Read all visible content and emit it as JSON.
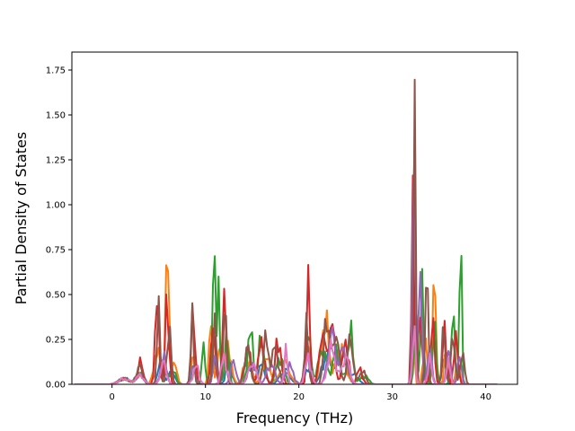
{
  "chart_data": {
    "type": "line",
    "title": "",
    "xlabel": "Frequency (THz)",
    "ylabel": "Partial Density of States",
    "xlim": [
      -4.3,
      43.4
    ],
    "ylim": [
      0.0,
      1.85
    ],
    "xticks": [
      0,
      10,
      20,
      30,
      40
    ],
    "xtick_labels": [
      "0",
      "10",
      "20",
      "30",
      "40"
    ],
    "yticks": [
      0.0,
      0.25,
      0.5,
      0.75,
      1.0,
      1.25,
      1.5,
      1.75
    ],
    "ytick_labels": [
      "0.00",
      "0.25",
      "0.50",
      "0.75",
      "1.00",
      "1.25",
      "1.50",
      "1.75"
    ],
    "grid": false,
    "legend": "none",
    "x_range": [
      -4.0,
      41.3
    ],
    "x_step": 0.2,
    "series": [
      {
        "color": "#1f77b4",
        "peaks": [
          [
            1.3,
            0.03,
            0.6
          ],
          [
            3,
            0.07,
            0.4
          ],
          [
            5.2,
            0.12,
            0.3
          ],
          [
            6.4,
            0.08,
            0.3
          ],
          [
            8.7,
            0.1,
            0.2
          ],
          [
            11,
            0.14,
            0.2
          ],
          [
            12.5,
            0.12,
            0.3
          ],
          [
            14.5,
            0.12,
            0.4
          ],
          [
            16,
            0.1,
            0.4
          ],
          [
            18.5,
            0.08,
            0.5
          ],
          [
            21,
            0.1,
            0.3
          ],
          [
            23,
            0.16,
            0.5
          ],
          [
            24.5,
            0.18,
            0.5
          ],
          [
            26,
            0.05,
            0.4
          ],
          [
            32.3,
            0.28,
            0.15
          ],
          [
            33.5,
            0.12,
            0.2
          ],
          [
            35.5,
            0.15,
            0.2
          ],
          [
            37,
            0.1,
            0.2
          ]
        ]
      },
      {
        "color": "#ff7f0e",
        "peaks": [
          [
            1.3,
            0.03,
            0.6
          ],
          [
            3,
            0.06,
            0.4
          ],
          [
            4.8,
            0.2,
            0.3
          ],
          [
            5.9,
            0.65,
            0.2
          ],
          [
            6.6,
            0.12,
            0.3
          ],
          [
            8.7,
            0.15,
            0.2
          ],
          [
            10.6,
            0.32,
            0.2
          ],
          [
            11.5,
            0.2,
            0.2
          ],
          [
            12.5,
            0.2,
            0.3
          ],
          [
            14.5,
            0.15,
            0.4
          ],
          [
            16.5,
            0.15,
            0.4
          ],
          [
            18.5,
            0.12,
            0.5
          ],
          [
            21,
            0.2,
            0.3
          ],
          [
            22.8,
            0.35,
            0.4
          ],
          [
            24.5,
            0.2,
            0.5
          ],
          [
            32.2,
            0.35,
            0.15
          ],
          [
            33.5,
            0.25,
            0.2
          ],
          [
            34.5,
            0.65,
            0.15
          ],
          [
            35.8,
            0.2,
            0.2
          ],
          [
            37,
            0.12,
            0.2
          ]
        ]
      },
      {
        "color": "#2ca02c",
        "peaks": [
          [
            1.3,
            0.03,
            0.6
          ],
          [
            3,
            0.06,
            0.4
          ],
          [
            5.5,
            0.1,
            0.3
          ],
          [
            6.5,
            0.08,
            0.3
          ],
          [
            8.7,
            0.1,
            0.2
          ],
          [
            9.8,
            0.26,
            0.15
          ],
          [
            10.9,
            1.0,
            0.12
          ],
          [
            11.4,
            0.5,
            0.15
          ],
          [
            12.3,
            0.25,
            0.2
          ],
          [
            14.8,
            0.28,
            0.3
          ],
          [
            16,
            0.25,
            0.3
          ],
          [
            18,
            0.15,
            0.4
          ],
          [
            21,
            0.25,
            0.3
          ],
          [
            22.5,
            0.2,
            0.4
          ],
          [
            24,
            0.18,
            0.4
          ],
          [
            25.5,
            0.28,
            0.3
          ],
          [
            27,
            0.05,
            0.4
          ],
          [
            32.5,
            0.45,
            0.15
          ],
          [
            33.2,
            0.85,
            0.12
          ],
          [
            34.5,
            0.3,
            0.2
          ],
          [
            36.5,
            0.35,
            0.2
          ],
          [
            37.3,
            0.77,
            0.12
          ]
        ]
      },
      {
        "color": "#d62728",
        "peaks": [
          [
            1.3,
            0.03,
            0.6
          ],
          [
            3,
            0.12,
            0.3
          ],
          [
            4.8,
            0.45,
            0.2
          ],
          [
            5.9,
            0.42,
            0.2
          ],
          [
            8.7,
            0.4,
            0.2
          ],
          [
            10.8,
            0.38,
            0.2
          ],
          [
            12,
            0.45,
            0.2
          ],
          [
            14.5,
            0.22,
            0.3
          ],
          [
            16,
            0.25,
            0.3
          ],
          [
            17.8,
            0.25,
            0.3
          ],
          [
            21,
            0.6,
            0.15
          ],
          [
            22.5,
            0.3,
            0.3
          ],
          [
            23.5,
            0.35,
            0.3
          ],
          [
            25,
            0.25,
            0.3
          ],
          [
            26.5,
            0.08,
            0.3
          ],
          [
            32.2,
            1.32,
            0.12
          ],
          [
            33,
            0.4,
            0.2
          ],
          [
            34.3,
            0.35,
            0.2
          ],
          [
            35.6,
            0.3,
            0.2
          ],
          [
            36.8,
            0.3,
            0.2
          ]
        ]
      },
      {
        "color": "#9467bd",
        "peaks": [
          [
            1.3,
            0.03,
            0.6
          ],
          [
            3,
            0.05,
            0.4
          ],
          [
            5.5,
            0.15,
            0.3
          ],
          [
            8.7,
            0.12,
            0.2
          ],
          [
            11,
            0.15,
            0.2
          ],
          [
            13,
            0.12,
            0.3
          ],
          [
            15,
            0.12,
            0.4
          ],
          [
            17,
            0.12,
            0.4
          ],
          [
            19,
            0.1,
            0.4
          ],
          [
            21,
            0.15,
            0.3
          ],
          [
            23.5,
            0.28,
            0.4
          ],
          [
            24.8,
            0.2,
            0.4
          ],
          [
            32.3,
            1.75,
            0.12
          ],
          [
            33,
            0.8,
            0.15
          ],
          [
            34,
            0.25,
            0.2
          ],
          [
            36,
            0.2,
            0.2
          ],
          [
            37.2,
            0.15,
            0.2
          ]
        ]
      },
      {
        "color": "#8c564b",
        "peaks": [
          [
            1.3,
            0.03,
            0.6
          ],
          [
            3,
            0.1,
            0.3
          ],
          [
            5,
            0.5,
            0.15
          ],
          [
            6.1,
            0.35,
            0.2
          ],
          [
            8.6,
            0.42,
            0.15
          ],
          [
            11,
            0.3,
            0.2
          ],
          [
            12.1,
            0.48,
            0.15
          ],
          [
            14.5,
            0.2,
            0.3
          ],
          [
            16.5,
            0.25,
            0.3
          ],
          [
            17.5,
            0.22,
            0.3
          ],
          [
            20.8,
            0.3,
            0.2
          ],
          [
            23,
            0.38,
            0.3
          ],
          [
            24,
            0.3,
            0.3
          ],
          [
            25.5,
            0.25,
            0.3
          ],
          [
            26.8,
            0.08,
            0.3
          ],
          [
            32.4,
            1.76,
            0.1
          ],
          [
            33.7,
            0.8,
            0.12
          ],
          [
            35.5,
            0.37,
            0.15
          ],
          [
            36.5,
            0.3,
            0.2
          ],
          [
            37.5,
            0.2,
            0.2
          ]
        ]
      },
      {
        "color": "#e377c2",
        "peaks": [
          [
            1.3,
            0.03,
            0.6
          ],
          [
            3,
            0.05,
            0.4
          ],
          [
            5.5,
            0.12,
            0.3
          ],
          [
            9,
            0.1,
            0.3
          ],
          [
            12,
            0.15,
            0.3
          ],
          [
            15,
            0.12,
            0.4
          ],
          [
            18.6,
            0.23,
            0.15
          ],
          [
            21,
            0.15,
            0.3
          ],
          [
            23.5,
            0.2,
            0.4
          ],
          [
            25,
            0.15,
            0.4
          ],
          [
            32.3,
            0.3,
            0.15
          ],
          [
            34,
            0.15,
            0.2
          ],
          [
            36,
            0.12,
            0.2
          ]
        ]
      }
    ]
  }
}
